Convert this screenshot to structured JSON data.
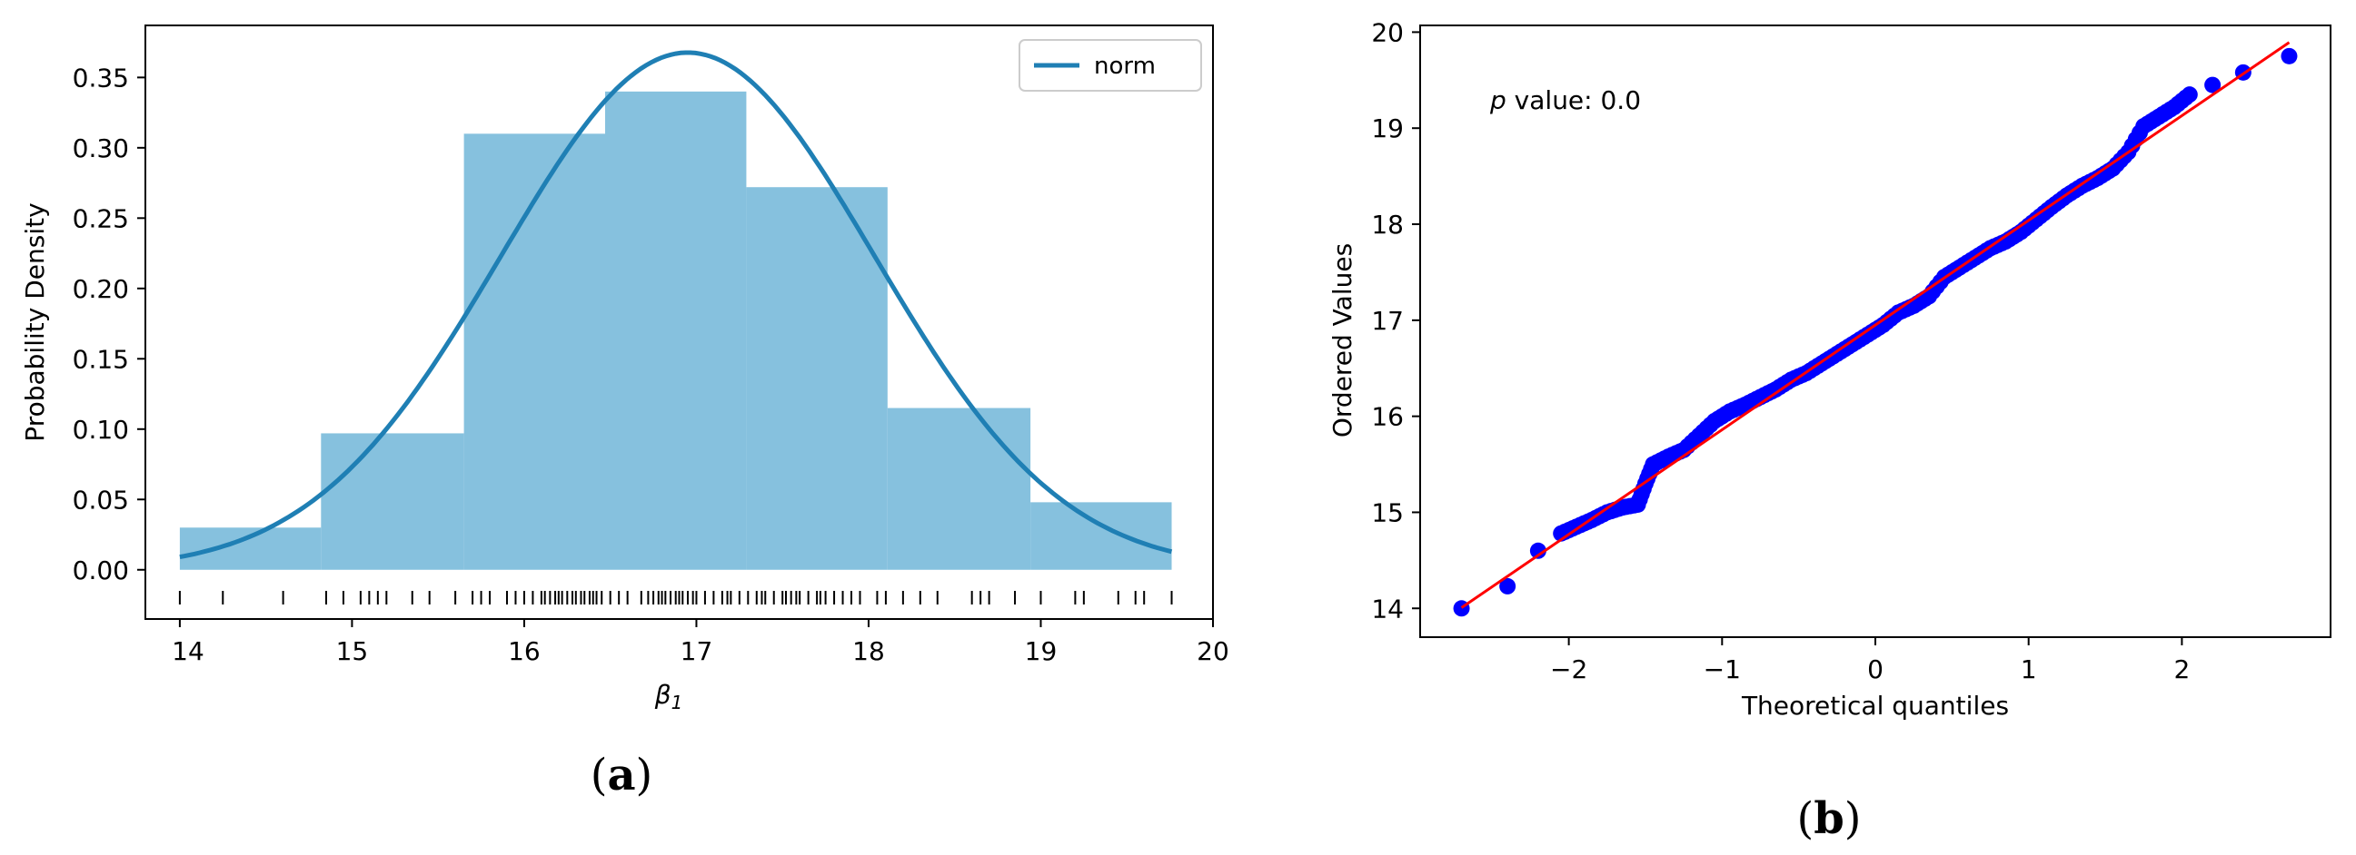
{
  "chart_data": [
    {
      "panel": "a",
      "type": "bar",
      "caption_open": "(",
      "caption_letter": "a",
      "caption_close": ")",
      "title": "",
      "xlabel_main": "β",
      "xlabel_sub": "1",
      "ylabel": "Probability Density",
      "xlim": [
        13.8,
        20.0
      ],
      "ylim": [
        -0.035,
        0.387
      ],
      "xticks": [
        14,
        15,
        16,
        17,
        18,
        19,
        20
      ],
      "yticks": [
        0.0,
        0.05,
        0.1,
        0.15,
        0.2,
        0.25,
        0.3,
        0.35
      ],
      "ytick_labels": [
        "0.00",
        "0.05",
        "0.10",
        "0.15",
        "0.20",
        "0.25",
        "0.30",
        "0.35"
      ],
      "bar_color": "#86c1de",
      "curve_color": "#1f7fb4",
      "bins": [
        {
          "x0": 14.0,
          "x1": 14.82,
          "density": 0.03
        },
        {
          "x0": 14.82,
          "x1": 15.65,
          "density": 0.097
        },
        {
          "x0": 15.65,
          "x1": 16.47,
          "density": 0.31
        },
        {
          "x0": 16.47,
          "x1": 17.29,
          "density": 0.34
        },
        {
          "x0": 17.29,
          "x1": 18.11,
          "density": 0.272
        },
        {
          "x0": 18.11,
          "x1": 18.94,
          "density": 0.115
        },
        {
          "x0": 18.94,
          "x1": 19.76,
          "density": 0.048
        }
      ],
      "normal_fit": {
        "name": "norm",
        "mean": 16.95,
        "sd": 1.085
      },
      "legend": [
        "norm"
      ],
      "legend_position": "top-right",
      "rug": [
        14.0,
        14.25,
        14.6,
        14.85,
        14.95,
        15.05,
        15.1,
        15.15,
        15.2,
        15.35,
        15.45,
        15.6,
        15.7,
        15.75,
        15.8,
        15.9,
        15.95,
        16.0,
        16.05,
        16.1,
        16.12,
        16.15,
        16.18,
        16.2,
        16.22,
        16.25,
        16.28,
        16.3,
        16.33,
        16.35,
        16.38,
        16.4,
        16.42,
        16.45,
        16.5,
        16.55,
        16.6,
        16.68,
        16.72,
        16.75,
        16.78,
        16.8,
        16.82,
        16.85,
        16.88,
        16.9,
        16.92,
        16.95,
        16.98,
        17.0,
        17.05,
        17.1,
        17.15,
        17.18,
        17.2,
        17.25,
        17.3,
        17.35,
        17.38,
        17.4,
        17.45,
        17.5,
        17.52,
        17.55,
        17.58,
        17.6,
        17.65,
        17.7,
        17.72,
        17.75,
        17.8,
        17.85,
        17.9,
        17.95,
        18.05,
        18.1,
        18.2,
        18.3,
        18.4,
        18.6,
        18.65,
        18.7,
        18.85,
        19.0,
        19.2,
        19.25,
        19.45,
        19.55,
        19.6,
        19.76
      ]
    },
    {
      "panel": "b",
      "type": "scatter",
      "caption_open": "(",
      "caption_letter": "b",
      "caption_close": ")",
      "title": "",
      "xlabel": "Theoretical quantiles",
      "ylabel": "Ordered Values",
      "annotation_italic": "p",
      "annotation_rest": " value: 0.0",
      "xlim": [
        -2.97,
        2.97
      ],
      "ylim": [
        13.7,
        20.07
      ],
      "xticks": [
        -2,
        -1,
        0,
        1,
        2
      ],
      "xtick_labels": [
        "−2",
        "−1",
        "0",
        "1",
        "2"
      ],
      "yticks": [
        14,
        15,
        16,
        17,
        18,
        19,
        20
      ],
      "marker_color": "#0000ff",
      "line_color": "#ff0000",
      "fit_line": {
        "slope": 1.09,
        "intercept": 16.95
      },
      "points": [
        [
          -2.7,
          14.0
        ],
        [
          -2.4,
          14.23
        ],
        [
          -2.2,
          14.6
        ],
        [
          -2.05,
          14.78
        ],
        [
          -1.95,
          14.85
        ],
        [
          -1.85,
          14.92
        ],
        [
          -1.75,
          15.0
        ],
        [
          -1.65,
          15.05
        ],
        [
          -1.55,
          15.08
        ],
        [
          -1.5,
          15.3
        ],
        [
          -1.45,
          15.5
        ],
        [
          -1.35,
          15.58
        ],
        [
          -1.25,
          15.65
        ],
        [
          -1.15,
          15.8
        ],
        [
          -1.05,
          15.95
        ],
        [
          -0.95,
          16.05
        ],
        [
          -0.85,
          16.12
        ],
        [
          -0.75,
          16.2
        ],
        [
          -0.65,
          16.28
        ],
        [
          -0.55,
          16.38
        ],
        [
          -0.45,
          16.45
        ],
        [
          -0.35,
          16.55
        ],
        [
          -0.25,
          16.65
        ],
        [
          -0.15,
          16.75
        ],
        [
          -0.05,
          16.85
        ],
        [
          0.05,
          16.95
        ],
        [
          0.15,
          17.08
        ],
        [
          0.25,
          17.15
        ],
        [
          0.35,
          17.25
        ],
        [
          0.45,
          17.45
        ],
        [
          0.55,
          17.55
        ],
        [
          0.65,
          17.65
        ],
        [
          0.75,
          17.75
        ],
        [
          0.85,
          17.82
        ],
        [
          0.95,
          17.92
        ],
        [
          1.05,
          18.05
        ],
        [
          1.15,
          18.18
        ],
        [
          1.25,
          18.3
        ],
        [
          1.35,
          18.4
        ],
        [
          1.45,
          18.48
        ],
        [
          1.55,
          18.58
        ],
        [
          1.65,
          18.75
        ],
        [
          1.75,
          19.02
        ],
        [
          1.85,
          19.12
        ],
        [
          1.95,
          19.22
        ],
        [
          2.05,
          19.35
        ],
        [
          2.2,
          19.45
        ],
        [
          2.4,
          19.58
        ],
        [
          2.7,
          19.75
        ]
      ]
    }
  ]
}
